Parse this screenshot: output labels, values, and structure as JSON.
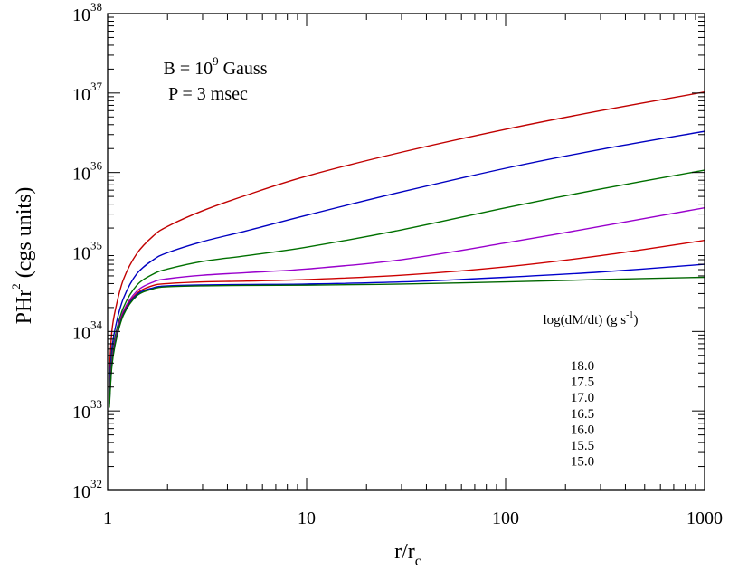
{
  "chart_data": {
    "type": "line",
    "x_scale": "log",
    "y_scale": "log",
    "xlim": [
      1,
      1000
    ],
    "ylim": [
      1e+32,
      1e+38
    ],
    "xlabel": {
      "main": "r/r",
      "sub": "c"
    },
    "ylabel": {
      "main": "PHr",
      "sup": "2",
      "rest": " (cgs units)"
    },
    "x_ticks": [
      {
        "value": 1,
        "label": "1"
      },
      {
        "value": 10,
        "label": "10"
      },
      {
        "value": 100,
        "label": "100"
      },
      {
        "value": 1000,
        "label": "1000"
      }
    ],
    "y_ticks": [
      {
        "exp": 32,
        "base": "10",
        "sup": "32"
      },
      {
        "exp": 33,
        "base": "10",
        "sup": "33"
      },
      {
        "exp": 34,
        "base": "10",
        "sup": "34"
      },
      {
        "exp": 35,
        "base": "10",
        "sup": "35"
      },
      {
        "exp": 36,
        "base": "10",
        "sup": "36"
      },
      {
        "exp": 37,
        "base": "10",
        "sup": "37"
      },
      {
        "exp": 38,
        "base": "10",
        "sup": "38"
      }
    ],
    "annotations": [
      {
        "pre": "B = 10",
        "sup": "9",
        "post": " Gauss"
      },
      {
        "pre": "P = 3 msec",
        "sup": "",
        "post": ""
      }
    ],
    "legend": {
      "placement": "right",
      "title": {
        "pre": "log(dM/dt)  (g s",
        "sup": "-1",
        "post": ")"
      },
      "entries": [
        "18.0",
        "17.5",
        "17.0",
        "16.5",
        "16.0",
        "15.5",
        "15.0"
      ]
    },
    "series": [
      {
        "name": "18.0",
        "color": "#c00000",
        "x": [
          1.02,
          1.05,
          1.1,
          1.2,
          1.4,
          1.7,
          2,
          3,
          5,
          10,
          30,
          100,
          300,
          1000
        ],
        "y": [
          3e+33,
          1e+34,
          2e+34,
          4.5e+34,
          9.5e+34,
          1.6e+35,
          2.1e+35,
          3.3e+35,
          5.2e+35,
          9e+35,
          1.8e+36,
          3.5e+36,
          6e+36,
          1.03e+37
        ]
      },
      {
        "name": "17.5",
        "color": "#0000c0",
        "x": [
          1.02,
          1.05,
          1.1,
          1.2,
          1.4,
          1.7,
          2,
          3,
          5,
          10,
          30,
          100,
          300,
          1000
        ],
        "y": [
          2e+33,
          6e+33,
          1.2e+34,
          2.6e+34,
          5.3e+34,
          8e+34,
          9.8e+34,
          1.35e+35,
          1.85e+35,
          2.9e+35,
          5.7e+35,
          1.13e+36,
          1.95e+36,
          3.3e+36
        ]
      },
      {
        "name": "17.0",
        "color": "#007000",
        "x": [
          1.02,
          1.05,
          1.1,
          1.2,
          1.4,
          1.7,
          2,
          3,
          5,
          10,
          30,
          100,
          300,
          1000
        ],
        "y": [
          1.6e+33,
          4.8e+33,
          9.5e+33,
          2e+34,
          3.8e+34,
          5.3e+34,
          6.1e+34,
          7.6e+34,
          9e+34,
          1.15e+35,
          1.9e+35,
          3.6e+35,
          6.2e+35,
          1.07e+36
        ]
      },
      {
        "name": "16.5",
        "color": "#9900cc",
        "x": [
          1.02,
          1.05,
          1.1,
          1.2,
          1.4,
          1.7,
          2,
          3,
          5,
          10,
          30,
          100,
          300,
          1000
        ],
        "y": [
          1.4e+33,
          4.2e+33,
          8.5e+33,
          1.8e+34,
          3.2e+34,
          4.2e+34,
          4.6e+34,
          5.1e+34,
          5.5e+34,
          6.1e+34,
          8e+34,
          1.3e+35,
          2.1e+35,
          3.6e+35
        ]
      },
      {
        "name": "16.0",
        "color": "#cc0000",
        "x": [
          1.02,
          1.05,
          1.1,
          1.2,
          1.4,
          1.7,
          2,
          3,
          5,
          10,
          30,
          100,
          300,
          1000
        ],
        "y": [
          1.3e+33,
          4e+33,
          8e+33,
          1.7e+34,
          3e+34,
          3.8e+34,
          4e+34,
          4.2e+34,
          4.3e+34,
          4.5e+34,
          5.1e+34,
          6.5e+34,
          9e+34,
          1.4e+35
        ]
      },
      {
        "name": "15.5",
        "color": "#0000cc",
        "x": [
          1.02,
          1.05,
          1.1,
          1.2,
          1.4,
          1.7,
          2,
          3,
          5,
          10,
          30,
          100,
          300,
          1000
        ],
        "y": [
          1.2e+33,
          3.8e+33,
          7.8e+33,
          1.65e+34,
          2.9e+34,
          3.55e+34,
          3.75e+34,
          3.85e+34,
          3.9e+34,
          3.95e+34,
          4.2e+34,
          4.8e+34,
          5.6e+34,
          7e+34
        ]
      },
      {
        "name": "15.0",
        "color": "#006600",
        "x": [
          1.02,
          1.05,
          1.1,
          1.2,
          1.4,
          1.7,
          2,
          3,
          5,
          10,
          30,
          100,
          300,
          1000
        ],
        "y": [
          1.1e+33,
          3.6e+33,
          7.5e+33,
          1.6e+34,
          2.8e+34,
          3.45e+34,
          3.65e+34,
          3.75e+34,
          3.8e+34,
          3.82e+34,
          3.95e+34,
          4.2e+34,
          4.5e+34,
          4.8e+34
        ]
      }
    ]
  }
}
